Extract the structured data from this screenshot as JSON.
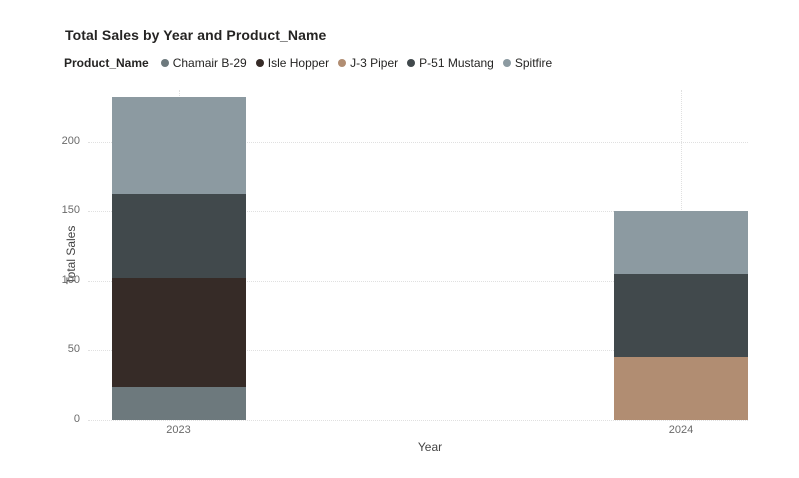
{
  "chart_data": {
    "type": "bar",
    "stacked": true,
    "title": "Total Sales by Year and Product_Name",
    "legend_title": "Product_Name",
    "legend_position": "top-left",
    "xlabel": "Year",
    "ylabel": "Total Sales",
    "categories": [
      "2023",
      "2024"
    ],
    "series": [
      {
        "name": "Chamair B-29",
        "color": "#6D797D",
        "values": [
          24,
          0
        ]
      },
      {
        "name": "Isle Hopper",
        "color": "#362B27",
        "values": [
          78,
          0
        ]
      },
      {
        "name": "J-3 Piper",
        "color": "#B18D72",
        "values": [
          0,
          45
        ]
      },
      {
        "name": "P-51 Mustang",
        "color": "#41494C",
        "values": [
          60,
          60
        ]
      },
      {
        "name": "Spitfire",
        "color": "#8C9AA1",
        "values": [
          70,
          45
        ]
      }
    ],
    "stack_totals": [
      232,
      150
    ],
    "y_ticks": [
      0,
      50,
      100,
      150,
      200
    ],
    "ylim": [
      0,
      237
    ],
    "grid": "dotted-horizontal-and-category-vertical",
    "colors": {
      "background": "#FFFFFF",
      "title_text": "#252423",
      "axis_tick_text": "#6A6A6A",
      "axis_title_text": "#444444",
      "gridline": "#E0E0E0"
    }
  }
}
